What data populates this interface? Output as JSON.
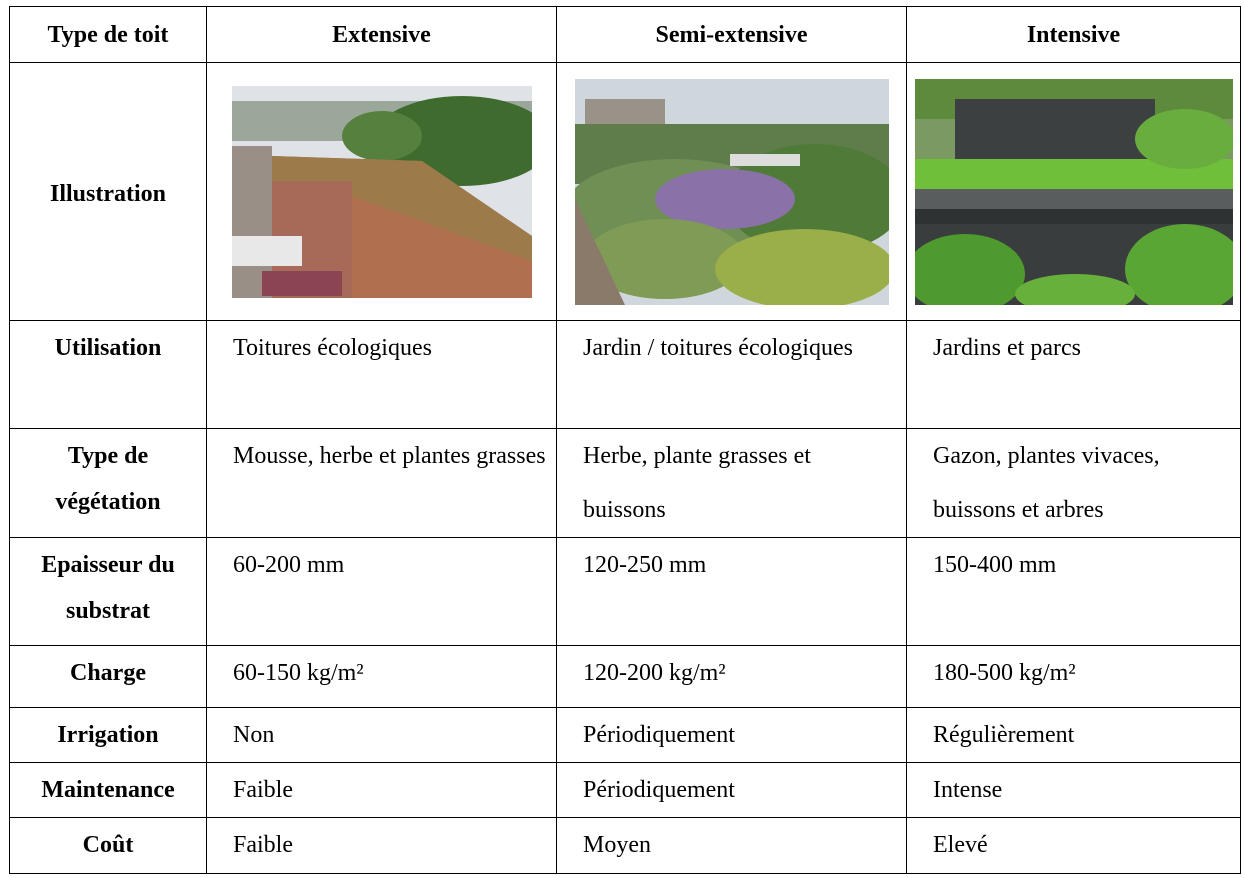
{
  "table": {
    "header": [
      "Type de toit",
      "Extensive",
      "Semi-extensive",
      "Intensive"
    ],
    "illustration_label": "Illustration",
    "rows": [
      [
        "Utilisation",
        "Toitures écologiques",
        "Jardin / toitures écologiques",
        "Jardins et parcs"
      ],
      [
        "Type de végétation",
        "Mousse, herbe et plantes grasses",
        "Herbe, plante grasses et buissons",
        "Gazon, plantes vivaces, buissons et arbres"
      ],
      [
        "Epaisseur du substrat",
        "60-200 mm",
        "120-250 mm",
        "150-400 mm"
      ],
      [
        "Charge",
        "60-150 kg/m²",
        "120-200 kg/m²",
        "180-500 kg/m²"
      ],
      [
        "Irrigation",
        "Non",
        "Périodiquement",
        "Régulièrement"
      ],
      [
        "Maintenance",
        "Faible",
        "Périodiquement",
        "Intense"
      ],
      [
        "Coût",
        "Faible",
        "Moyen",
        "Elevé"
      ]
    ]
  }
}
